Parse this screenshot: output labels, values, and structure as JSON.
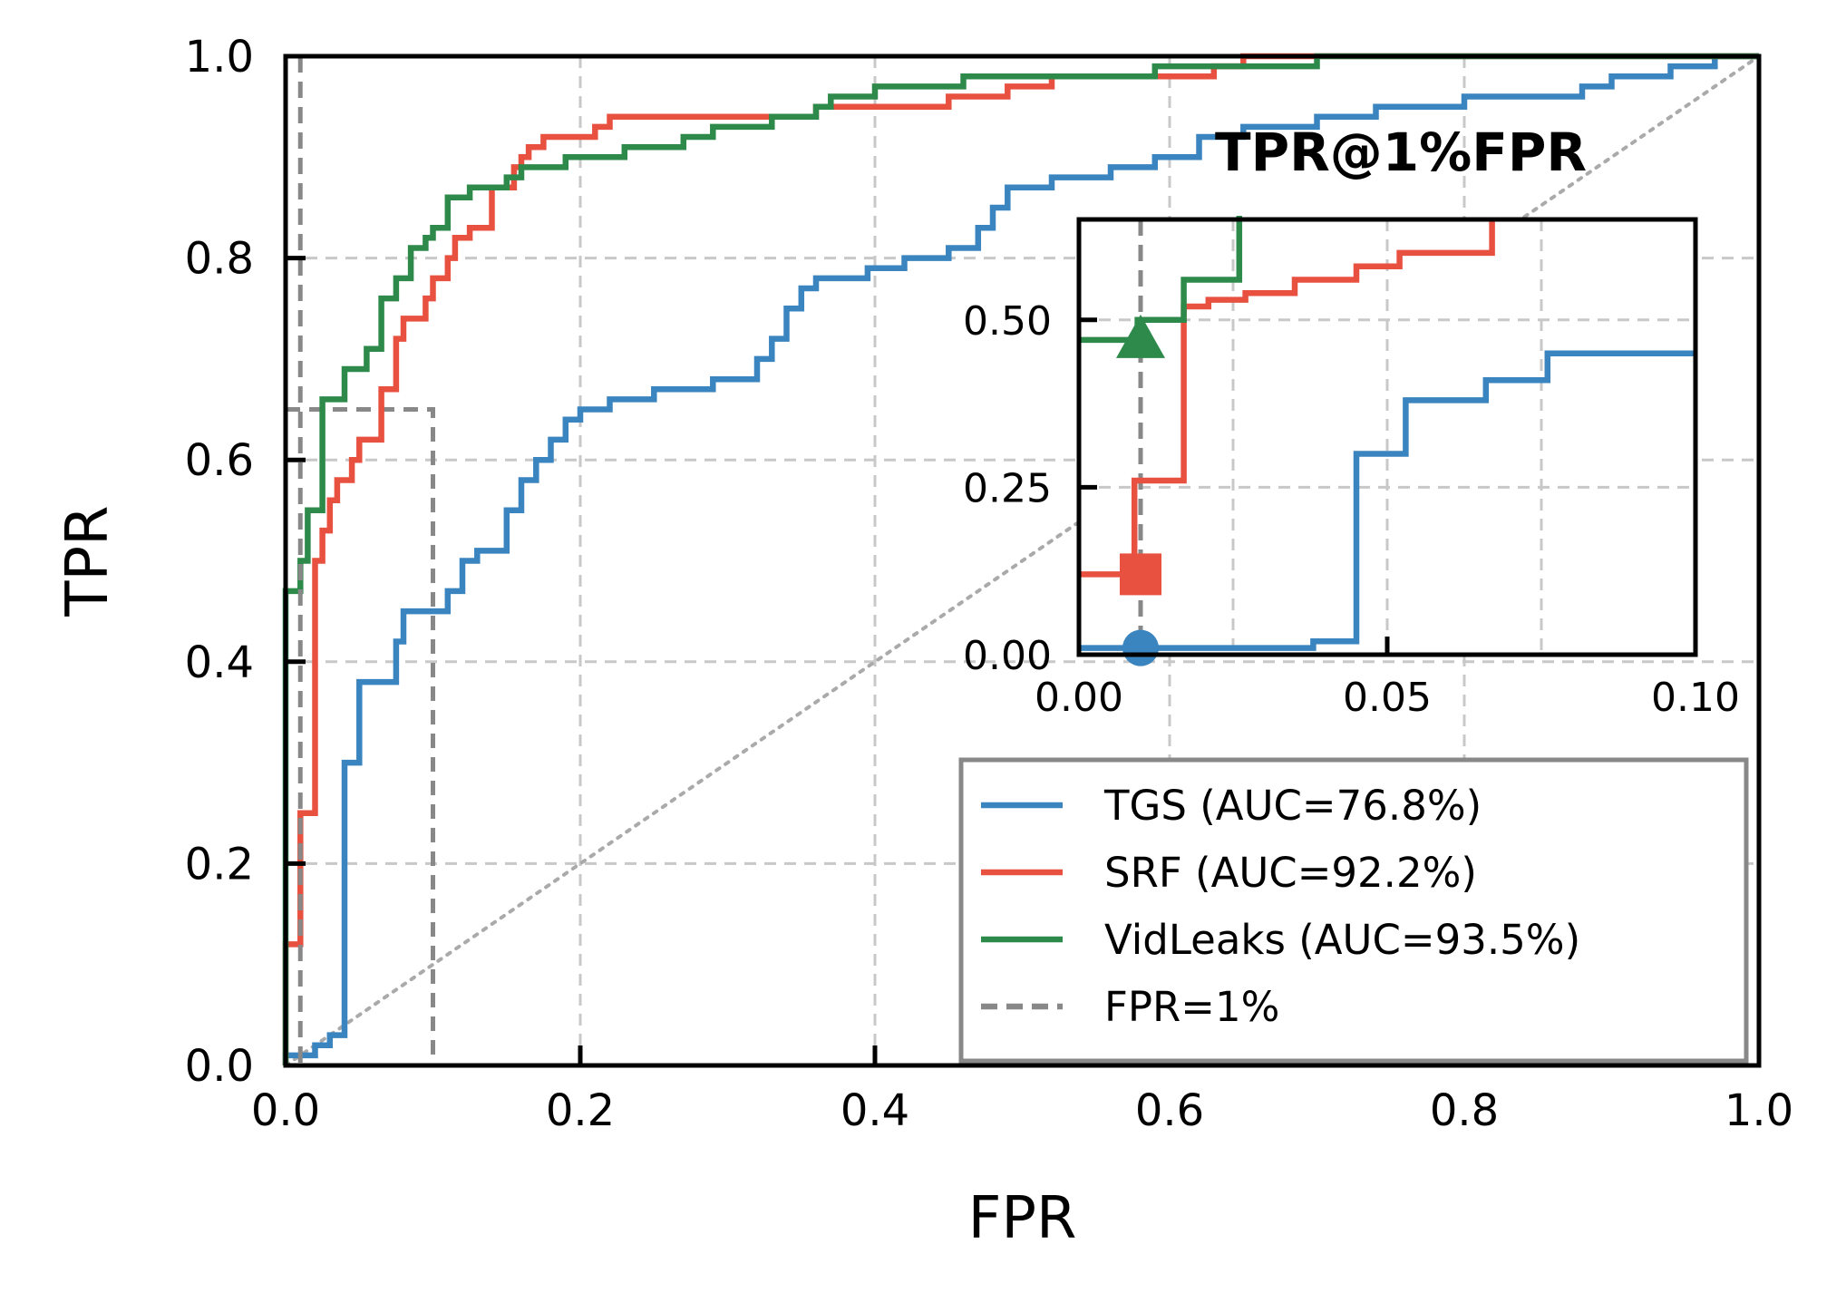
{
  "chart_data": {
    "type": "line",
    "xlabel": "FPR",
    "ylabel": "TPR",
    "xlim": [
      0.0,
      1.0
    ],
    "ylim": [
      0.0,
      1.0
    ],
    "grid": true,
    "legend_position": "bottom-right",
    "x_ticks": [
      "0.0",
      "0.2",
      "0.4",
      "0.6",
      "0.8",
      "1.0"
    ],
    "y_ticks": [
      "0.0",
      "0.2",
      "0.4",
      "0.6",
      "0.8",
      "1.0"
    ],
    "colors": {
      "TGS": "#3a84bf",
      "SRF": "#e85040",
      "VidLeaks": "#2e8a4a",
      "FPR=1%": "#888888",
      "chance": "#aaaaaa"
    },
    "series": [
      {
        "name": "TGS (AUC=76.8%)",
        "key": "TGS",
        "points": [
          [
            0,
            0
          ],
          [
            0,
            0.01
          ],
          [
            0.02,
            0.01
          ],
          [
            0.02,
            0.02
          ],
          [
            0.03,
            0.02
          ],
          [
            0.03,
            0.03
          ],
          [
            0.04,
            0.03
          ],
          [
            0.04,
            0.3
          ],
          [
            0.05,
            0.3
          ],
          [
            0.05,
            0.38
          ],
          [
            0.075,
            0.38
          ],
          [
            0.075,
            0.42
          ],
          [
            0.08,
            0.42
          ],
          [
            0.08,
            0.45
          ],
          [
            0.11,
            0.45
          ],
          [
            0.11,
            0.47
          ],
          [
            0.12,
            0.47
          ],
          [
            0.12,
            0.5
          ],
          [
            0.13,
            0.5
          ],
          [
            0.13,
            0.51
          ],
          [
            0.15,
            0.51
          ],
          [
            0.15,
            0.55
          ],
          [
            0.16,
            0.55
          ],
          [
            0.16,
            0.58
          ],
          [
            0.17,
            0.58
          ],
          [
            0.17,
            0.6
          ],
          [
            0.18,
            0.6
          ],
          [
            0.18,
            0.62
          ],
          [
            0.19,
            0.62
          ],
          [
            0.19,
            0.64
          ],
          [
            0.2,
            0.64
          ],
          [
            0.2,
            0.65
          ],
          [
            0.22,
            0.65
          ],
          [
            0.22,
            0.66
          ],
          [
            0.25,
            0.66
          ],
          [
            0.25,
            0.67
          ],
          [
            0.29,
            0.67
          ],
          [
            0.29,
            0.68
          ],
          [
            0.32,
            0.68
          ],
          [
            0.32,
            0.7
          ],
          [
            0.33,
            0.7
          ],
          [
            0.33,
            0.72
          ],
          [
            0.34,
            0.72
          ],
          [
            0.34,
            0.75
          ],
          [
            0.35,
            0.75
          ],
          [
            0.35,
            0.77
          ],
          [
            0.36,
            0.77
          ],
          [
            0.36,
            0.78
          ],
          [
            0.395,
            0.78
          ],
          [
            0.395,
            0.79
          ],
          [
            0.42,
            0.79
          ],
          [
            0.42,
            0.8
          ],
          [
            0.45,
            0.8
          ],
          [
            0.45,
            0.81
          ],
          [
            0.47,
            0.81
          ],
          [
            0.47,
            0.83
          ],
          [
            0.48,
            0.83
          ],
          [
            0.48,
            0.85
          ],
          [
            0.49,
            0.85
          ],
          [
            0.49,
            0.87
          ],
          [
            0.52,
            0.87
          ],
          [
            0.52,
            0.88
          ],
          [
            0.56,
            0.88
          ],
          [
            0.56,
            0.89
          ],
          [
            0.59,
            0.89
          ],
          [
            0.59,
            0.9
          ],
          [
            0.62,
            0.9
          ],
          [
            0.62,
            0.92
          ],
          [
            0.65,
            0.92
          ],
          [
            0.65,
            0.93
          ],
          [
            0.7,
            0.93
          ],
          [
            0.7,
            0.94
          ],
          [
            0.74,
            0.94
          ],
          [
            0.74,
            0.95
          ],
          [
            0.8,
            0.95
          ],
          [
            0.8,
            0.96
          ],
          [
            0.88,
            0.96
          ],
          [
            0.88,
            0.97
          ],
          [
            0.9,
            0.97
          ],
          [
            0.9,
            0.98
          ],
          [
            0.94,
            0.98
          ],
          [
            0.94,
            0.99
          ],
          [
            0.97,
            0.99
          ],
          [
            0.97,
            1.0
          ],
          [
            1.0,
            1.0
          ]
        ],
        "inset_points": [
          [
            0,
            0.01
          ],
          [
            0.038,
            0.01
          ],
          [
            0.038,
            0.02
          ],
          [
            0.045,
            0.02
          ],
          [
            0.045,
            0.3
          ],
          [
            0.053,
            0.3
          ],
          [
            0.053,
            0.38
          ],
          [
            0.066,
            0.38
          ],
          [
            0.066,
            0.41
          ],
          [
            0.076,
            0.41
          ],
          [
            0.076,
            0.45
          ],
          [
            0.1,
            0.45
          ]
        ],
        "marker": {
          "shape": "circle",
          "x": 0.01,
          "y": 0.01
        }
      },
      {
        "name": "SRF (AUC=92.2%)",
        "key": "SRF",
        "points": [
          [
            0,
            0
          ],
          [
            0,
            0.12
          ],
          [
            0.01,
            0.12
          ],
          [
            0.01,
            0.25
          ],
          [
            0.02,
            0.25
          ],
          [
            0.02,
            0.5
          ],
          [
            0.025,
            0.5
          ],
          [
            0.025,
            0.53
          ],
          [
            0.03,
            0.53
          ],
          [
            0.03,
            0.56
          ],
          [
            0.035,
            0.56
          ],
          [
            0.035,
            0.58
          ],
          [
            0.045,
            0.58
          ],
          [
            0.045,
            0.6
          ],
          [
            0.05,
            0.6
          ],
          [
            0.05,
            0.62
          ],
          [
            0.065,
            0.62
          ],
          [
            0.065,
            0.67
          ],
          [
            0.075,
            0.67
          ],
          [
            0.075,
            0.72
          ],
          [
            0.08,
            0.72
          ],
          [
            0.08,
            0.74
          ],
          [
            0.095,
            0.74
          ],
          [
            0.095,
            0.76
          ],
          [
            0.1,
            0.76
          ],
          [
            0.1,
            0.78
          ],
          [
            0.11,
            0.78
          ],
          [
            0.11,
            0.8
          ],
          [
            0.115,
            0.8
          ],
          [
            0.115,
            0.82
          ],
          [
            0.125,
            0.82
          ],
          [
            0.125,
            0.83
          ],
          [
            0.14,
            0.83
          ],
          [
            0.14,
            0.87
          ],
          [
            0.155,
            0.87
          ],
          [
            0.155,
            0.89
          ],
          [
            0.16,
            0.89
          ],
          [
            0.16,
            0.9
          ],
          [
            0.165,
            0.9
          ],
          [
            0.165,
            0.91
          ],
          [
            0.175,
            0.91
          ],
          [
            0.175,
            0.92
          ],
          [
            0.21,
            0.92
          ],
          [
            0.21,
            0.93
          ],
          [
            0.22,
            0.93
          ],
          [
            0.22,
            0.94
          ],
          [
            0.36,
            0.94
          ],
          [
            0.36,
            0.95
          ],
          [
            0.45,
            0.95
          ],
          [
            0.45,
            0.96
          ],
          [
            0.49,
            0.96
          ],
          [
            0.49,
            0.97
          ],
          [
            0.52,
            0.97
          ],
          [
            0.52,
            0.98
          ],
          [
            0.63,
            0.98
          ],
          [
            0.63,
            0.99
          ],
          [
            0.65,
            0.99
          ],
          [
            0.65,
            1.0
          ],
          [
            1.0,
            1.0
          ]
        ],
        "inset_points": [
          [
            0,
            0.12
          ],
          [
            0.009,
            0.12
          ],
          [
            0.009,
            0.26
          ],
          [
            0.017,
            0.26
          ],
          [
            0.017,
            0.52
          ],
          [
            0.021,
            0.52
          ],
          [
            0.021,
            0.53
          ],
          [
            0.027,
            0.53
          ],
          [
            0.027,
            0.54
          ],
          [
            0.035,
            0.54
          ],
          [
            0.035,
            0.56
          ],
          [
            0.045,
            0.56
          ],
          [
            0.045,
            0.58
          ],
          [
            0.052,
            0.58
          ],
          [
            0.052,
            0.6
          ],
          [
            0.067,
            0.6
          ],
          [
            0.067,
            0.65
          ]
        ],
        "marker": {
          "shape": "square",
          "x": 0.01,
          "y": 0.12
        }
      },
      {
        "name": "VidLeaks (AUC=93.5%)",
        "key": "VidLeaks",
        "points": [
          [
            0,
            0
          ],
          [
            0,
            0.47
          ],
          [
            0.01,
            0.47
          ],
          [
            0.01,
            0.5
          ],
          [
            0.015,
            0.5
          ],
          [
            0.015,
            0.55
          ],
          [
            0.025,
            0.55
          ],
          [
            0.025,
            0.66
          ],
          [
            0.04,
            0.66
          ],
          [
            0.04,
            0.69
          ],
          [
            0.055,
            0.69
          ],
          [
            0.055,
            0.71
          ],
          [
            0.065,
            0.71
          ],
          [
            0.065,
            0.76
          ],
          [
            0.075,
            0.76
          ],
          [
            0.075,
            0.78
          ],
          [
            0.085,
            0.78
          ],
          [
            0.085,
            0.81
          ],
          [
            0.095,
            0.81
          ],
          [
            0.095,
            0.82
          ],
          [
            0.1,
            0.82
          ],
          [
            0.1,
            0.83
          ],
          [
            0.11,
            0.83
          ],
          [
            0.11,
            0.86
          ],
          [
            0.125,
            0.86
          ],
          [
            0.125,
            0.87
          ],
          [
            0.15,
            0.87
          ],
          [
            0.15,
            0.88
          ],
          [
            0.16,
            0.88
          ],
          [
            0.16,
            0.89
          ],
          [
            0.19,
            0.89
          ],
          [
            0.19,
            0.9
          ],
          [
            0.23,
            0.9
          ],
          [
            0.23,
            0.91
          ],
          [
            0.27,
            0.91
          ],
          [
            0.27,
            0.92
          ],
          [
            0.29,
            0.92
          ],
          [
            0.29,
            0.93
          ],
          [
            0.33,
            0.93
          ],
          [
            0.33,
            0.94
          ],
          [
            0.36,
            0.94
          ],
          [
            0.36,
            0.95
          ],
          [
            0.37,
            0.95
          ],
          [
            0.37,
            0.96
          ],
          [
            0.4,
            0.96
          ],
          [
            0.4,
            0.97
          ],
          [
            0.46,
            0.97
          ],
          [
            0.46,
            0.98
          ],
          [
            0.59,
            0.98
          ],
          [
            0.59,
            0.99
          ],
          [
            0.7,
            0.99
          ],
          [
            0.7,
            1.0
          ],
          [
            1.0,
            1.0
          ]
        ],
        "inset_points": [
          [
            0,
            0.47
          ],
          [
            0.0095,
            0.47
          ],
          [
            0.0095,
            0.5
          ],
          [
            0.017,
            0.5
          ],
          [
            0.017,
            0.56
          ],
          [
            0.026,
            0.56
          ],
          [
            0.026,
            0.67
          ]
        ],
        "marker": {
          "shape": "triangle",
          "x": 0.01,
          "y": 0.47
        }
      }
    ],
    "reference_lines": [
      {
        "name": "FPR=1%",
        "key": "FPR=1%",
        "x": 0.01
      },
      {
        "name": "chance",
        "key": "chance",
        "from": [
          0,
          0
        ],
        "to": [
          1,
          1
        ]
      }
    ],
    "zoom_box": {
      "xlim": [
        0.0,
        0.1
      ],
      "ylim": [
        0.0,
        0.65
      ]
    },
    "inset": {
      "title": "TPR@1%FPR",
      "xlim": [
        0.0,
        0.1
      ],
      "ylim": [
        0.0,
        0.65
      ],
      "x_ticks": [
        "0.00",
        "0.05",
        "0.10"
      ],
      "y_ticks": [
        "0.00",
        "0.25",
        "0.50"
      ],
      "x_tick_values": [
        0.0,
        0.05,
        0.1
      ],
      "y_tick_values": [
        0.0,
        0.25,
        0.5
      ]
    },
    "legend": [
      "TGS (AUC=76.8%)",
      "SRF (AUC=92.2%)",
      "VidLeaks (AUC=93.5%)",
      "FPR=1%"
    ]
  }
}
